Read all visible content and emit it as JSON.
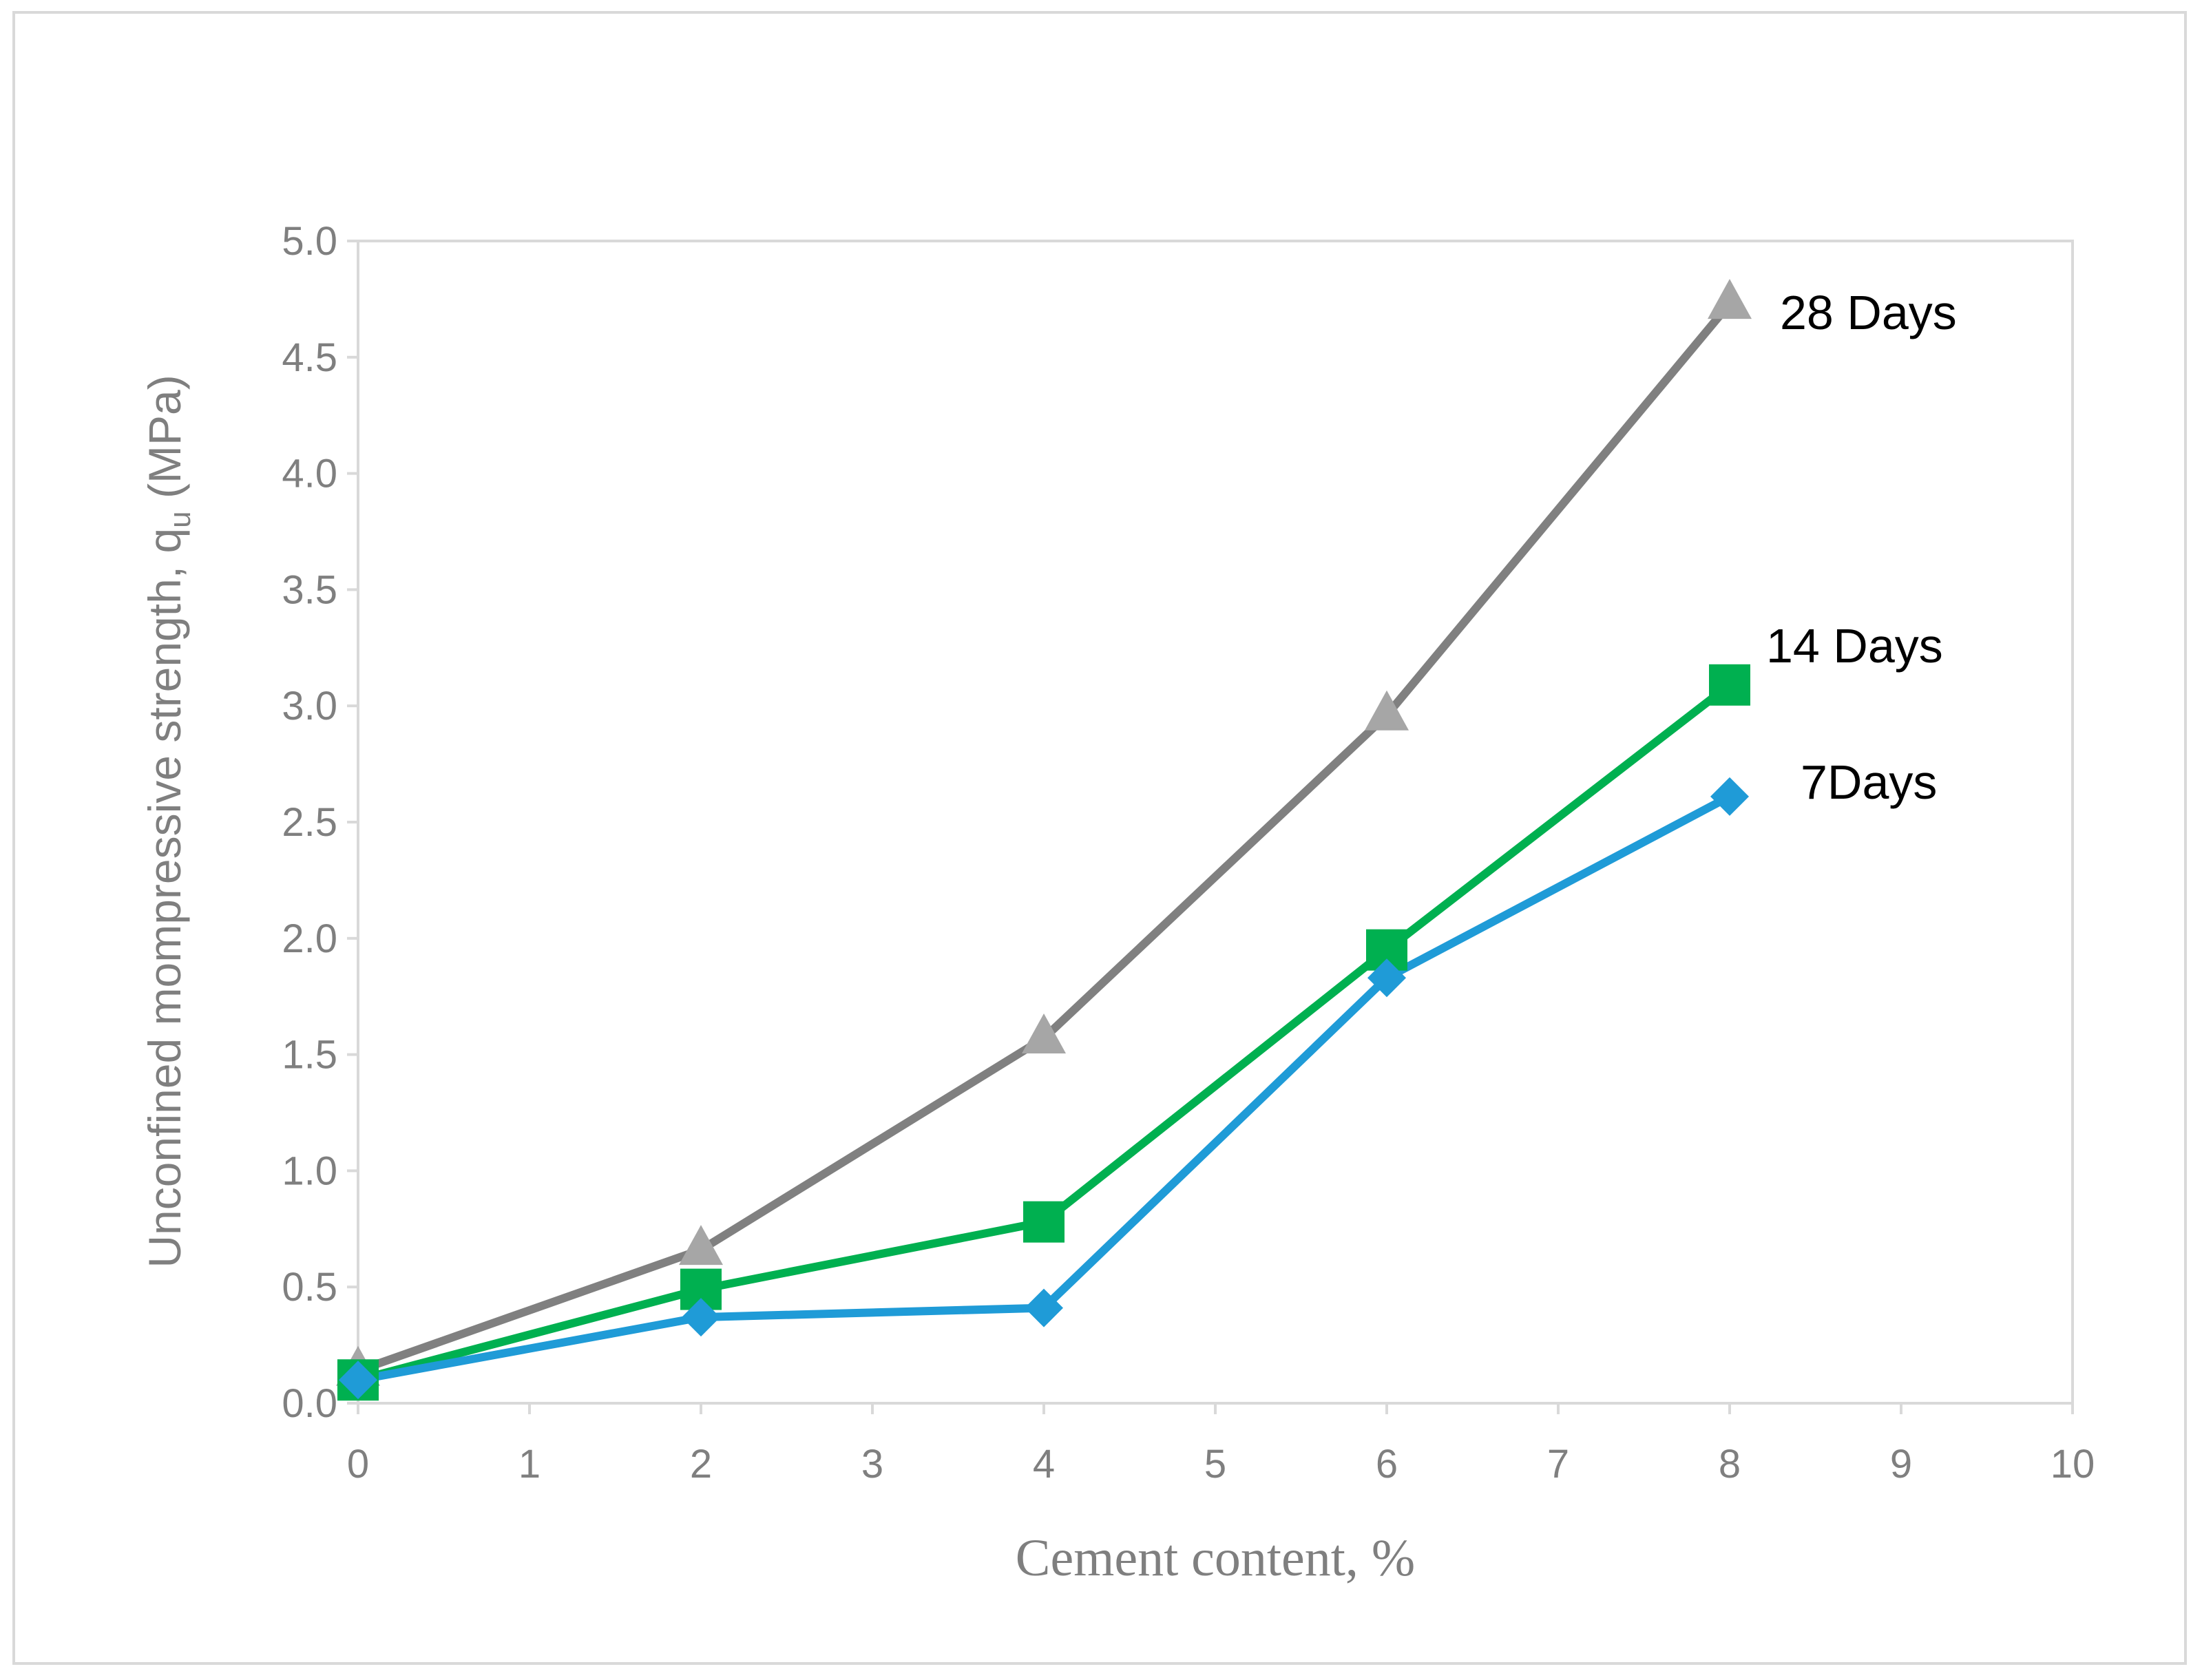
{
  "chart_data": {
    "type": "line",
    "title": "",
    "xlabel": "Cement content, %",
    "ylabel": "Unconfined mompressive strength, q",
    "ylabel_subscript": "u",
    "ylabel_unit": " (MPa)",
    "xlim": [
      0,
      10
    ],
    "ylim": [
      0,
      5
    ],
    "x_ticks": [
      "0",
      "1",
      "2",
      "3",
      "4",
      "5",
      "6",
      "7",
      "8",
      "9",
      "10"
    ],
    "y_ticks": [
      "0.0",
      "0.5",
      "1.0",
      "1.5",
      "2.0",
      "2.5",
      "3.0",
      "3.5",
      "4.0",
      "4.5",
      "5.0"
    ],
    "grid": false,
    "legend": "none",
    "series": [
      {
        "name": "28 Days",
        "marker": "triangle",
        "color": "#808080",
        "marker_color": "#a6a6a6",
        "x": [
          0,
          2,
          4,
          6,
          8
        ],
        "values": [
          0.14,
          0.66,
          1.57,
          2.96,
          4.73
        ]
      },
      {
        "name": "14 Days",
        "marker": "square",
        "color": "#00b050",
        "marker_color": "#00b050",
        "x": [
          0,
          2,
          4,
          6,
          8
        ],
        "values": [
          0.1,
          0.49,
          0.78,
          1.95,
          3.09
        ]
      },
      {
        "name": "7Days",
        "marker": "diamond",
        "color": "#1f9bd7",
        "marker_color": "#1f9bd7",
        "x": [
          0,
          2,
          4,
          6,
          8
        ],
        "values": [
          0.1,
          0.37,
          0.41,
          1.83,
          2.61
        ]
      }
    ]
  }
}
